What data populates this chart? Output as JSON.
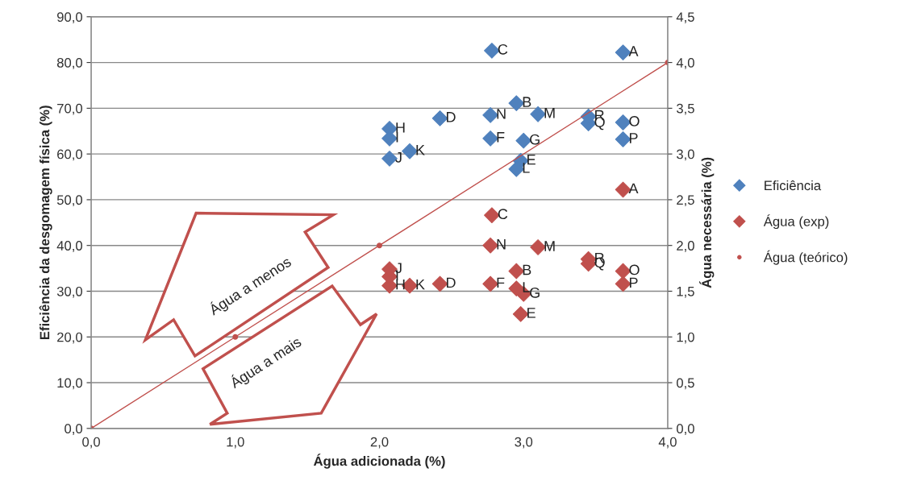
{
  "chart_data": {
    "type": "scatter",
    "xlabel": "Água adicionada (%)",
    "ylabel": "Eficiência da desgomagem física (%)",
    "y2label": "Água necessária (%)",
    "xlim": [
      0,
      4
    ],
    "xticks": [
      {
        "value": 0,
        "label": "0,0"
      },
      {
        "value": 1,
        "label": "1,0"
      },
      {
        "value": 2,
        "label": "2,0"
      },
      {
        "value": 3,
        "label": "3,0"
      },
      {
        "value": 4,
        "label": "4,0"
      }
    ],
    "ylim": [
      0,
      90
    ],
    "yticks": [
      {
        "value": 0,
        "label": "0,0"
      },
      {
        "value": 10,
        "label": "10,0"
      },
      {
        "value": 20,
        "label": "20,0"
      },
      {
        "value": 30,
        "label": "30,0"
      },
      {
        "value": 40,
        "label": "40,0"
      },
      {
        "value": 50,
        "label": "50,0"
      },
      {
        "value": 60,
        "label": "60,0"
      },
      {
        "value": 70,
        "label": "70,0"
      },
      {
        "value": 80,
        "label": "80,0"
      },
      {
        "value": 90,
        "label": "90,0"
      }
    ],
    "y2lim": [
      0,
      4.5
    ],
    "y2ticks": [
      {
        "value": 0,
        "label": "0,0"
      },
      {
        "value": 0.5,
        "label": "0,5"
      },
      {
        "value": 1,
        "label": "1,0"
      },
      {
        "value": 1.5,
        "label": "1,5"
      },
      {
        "value": 2,
        "label": "2,0"
      },
      {
        "value": 2.5,
        "label": "2,5"
      },
      {
        "value": 3,
        "label": "3,0"
      },
      {
        "value": 3.5,
        "label": "3,5"
      },
      {
        "value": 4,
        "label": "4,0"
      },
      {
        "value": 4.5,
        "label": "4,5"
      }
    ],
    "grid": "y",
    "legend": "right",
    "series": [
      {
        "name": "Eficiência",
        "color": "#4f81bd",
        "marker": "diamond",
        "x": [
          3.69,
          2.95,
          2.78,
          2.42,
          2.98,
          2.77,
          3.0,
          2.07,
          2.07,
          2.07,
          2.21,
          2.95,
          3.1,
          2.77,
          3.69,
          3.69,
          3.45,
          3.45
        ],
        "values": [
          82.2,
          71.1,
          82.6,
          67.8,
          58.5,
          63.4,
          62.9,
          65.5,
          63.4,
          59.0,
          60.6,
          56.7,
          68.7,
          68.5,
          66.9,
          63.2,
          66.7,
          68.2
        ],
        "value_labels": [
          "A",
          "B",
          "C",
          "D",
          "E",
          "F",
          "G",
          "H",
          "I",
          "J",
          "K",
          "L",
          "M",
          "N",
          "O",
          "P",
          "Q",
          "R"
        ]
      },
      {
        "name": "Água (exp)",
        "color": "#c0504d",
        "marker": "diamond",
        "axis": "y2",
        "x": [
          3.69,
          2.95,
          2.78,
          2.42,
          2.98,
          2.77,
          3.0,
          2.07,
          2.07,
          2.07,
          2.21,
          2.95,
          3.1,
          2.77,
          3.69,
          3.69,
          3.45,
          3.45
        ],
        "values": [
          2.61,
          1.72,
          2.33,
          1.58,
          1.25,
          1.58,
          1.47,
          1.56,
          1.66,
          1.74,
          1.56,
          1.53,
          1.98,
          2.0,
          1.72,
          1.58,
          1.8,
          1.85
        ],
        "value_labels": [
          "A",
          "B",
          "C",
          "D",
          "E",
          "F",
          "G",
          "H",
          "I",
          "J",
          "K",
          "L",
          "M",
          "N",
          "O",
          "P",
          "Q",
          "R"
        ]
      },
      {
        "name": "Água (teórico)",
        "color": "#c0504d",
        "type": "line",
        "marker": "circle",
        "axis": "y2",
        "x": [
          0,
          1,
          2,
          4
        ],
        "values": [
          0,
          1,
          2,
          4
        ]
      }
    ],
    "annotations": [
      "Água a menos",
      "Água a mais"
    ]
  }
}
